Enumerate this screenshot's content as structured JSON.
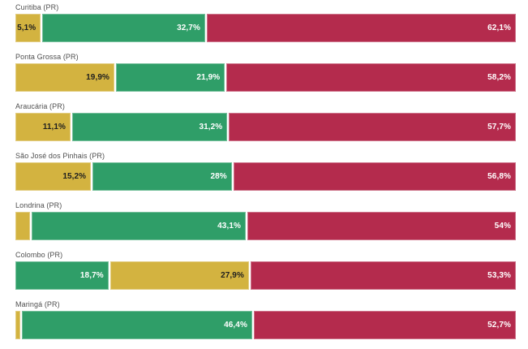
{
  "chart_data": {
    "type": "bar",
    "orientation": "horizontal-stacked",
    "unit": "%",
    "xlim": [
      0,
      100
    ],
    "grid": false,
    "legend": "none",
    "palette": {
      "yellow": "#d3b340",
      "green": "#2f9e68",
      "red": "#b42b4d"
    },
    "label_text_colors": {
      "yellow": "#1f1f1f",
      "green": "#ffffff",
      "red": "#ffffff"
    },
    "category_label_color": "#4f4f4f",
    "rows": [
      {
        "category": "Curitiba (PR)",
        "segments": [
          {
            "color": "yellow",
            "value": 5.1,
            "label": "5,1%"
          },
          {
            "color": "green",
            "value": 32.7,
            "label": "32,7%"
          },
          {
            "color": "red",
            "value": 62.1,
            "label": "62,1%"
          }
        ]
      },
      {
        "category": "Ponta Grossa (PR)",
        "segments": [
          {
            "color": "yellow",
            "value": 19.9,
            "label": "19,9%"
          },
          {
            "color": "green",
            "value": 21.9,
            "label": "21,9%"
          },
          {
            "color": "red",
            "value": 58.2,
            "label": "58,2%"
          }
        ]
      },
      {
        "category": "Araucária (PR)",
        "segments": [
          {
            "color": "yellow",
            "value": 11.1,
            "label": "11,1%"
          },
          {
            "color": "green",
            "value": 31.2,
            "label": "31,2%"
          },
          {
            "color": "red",
            "value": 57.7,
            "label": "57,7%"
          }
        ]
      },
      {
        "category": "São José dos Pinhais (PR)",
        "segments": [
          {
            "color": "yellow",
            "value": 15.2,
            "label": "15,2%"
          },
          {
            "color": "green",
            "value": 28,
            "label": "28%"
          },
          {
            "color": "red",
            "value": 56.8,
            "label": "56,8%"
          }
        ]
      },
      {
        "category": "Londrina (PR)",
        "segments": [
          {
            "color": "yellow",
            "value": 2.9,
            "label": ""
          },
          {
            "color": "green",
            "value": 43.1,
            "label": "43,1%"
          },
          {
            "color": "red",
            "value": 54,
            "label": "54%"
          }
        ]
      },
      {
        "category": "Colombo (PR)",
        "segments": [
          {
            "color": "green",
            "value": 18.7,
            "label": "18,7%"
          },
          {
            "color": "yellow",
            "value": 27.9,
            "label": "27,9%"
          },
          {
            "color": "red",
            "value": 53.3,
            "label": "53,3%"
          }
        ]
      },
      {
        "category": "Maringá (PR)",
        "segments": [
          {
            "color": "yellow",
            "value": 0.9,
            "label": ""
          },
          {
            "color": "green",
            "value": 46.4,
            "label": "46,4%"
          },
          {
            "color": "red",
            "value": 52.7,
            "label": "52,7%"
          }
        ]
      }
    ]
  }
}
